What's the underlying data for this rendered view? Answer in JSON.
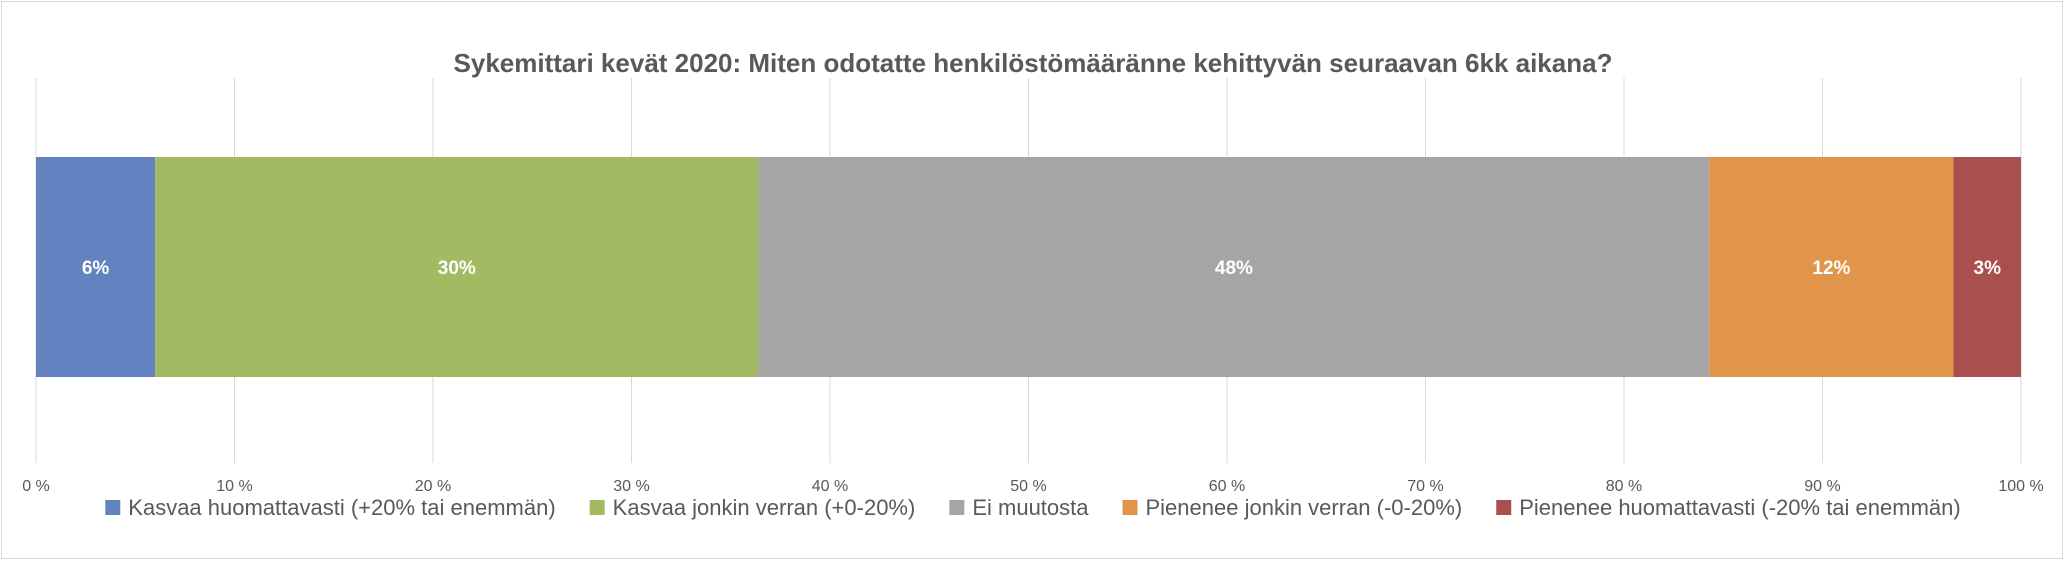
{
  "chart_data": {
    "type": "bar",
    "orientation": "horizontal",
    "stacked": "percent",
    "title": "Sykemittari kevät 2020:  Miten odotatte henkilöstömääränne kehittyvän seuraavan 6kk aikana?",
    "xlabel": "",
    "ylabel": "",
    "xlim": [
      0,
      100
    ],
    "grid": true,
    "legend_position": "bottom",
    "x_ticks": [
      "0 %",
      "10 %",
      "20 %",
      "30 %",
      "40 %",
      "50 %",
      "60 %",
      "70 %",
      "80 %",
      "90 %",
      "100 %"
    ],
    "series": [
      {
        "name": "Kasvaa huomattavasti (+20% tai enemmän)",
        "value": 6,
        "label": "6%",
        "color": "#6382c0"
      },
      {
        "name": "Kasvaa jonkin verran (+0-20%)",
        "value": 30.4,
        "label": "30%",
        "color": "#a2bb63"
      },
      {
        "name": "Ei muutosta",
        "value": 47.9,
        "label": "48%",
        "color": "#a5a5a5"
      },
      {
        "name": "Pienenee jonkin verran (-0-20%)",
        "value": 12.3,
        "label": "12%",
        "color": "#e0954b"
      },
      {
        "name": "Pienenee huomattavasti (-20% tai enemmän)",
        "value": 3.4,
        "label": "3%",
        "color": "#a9504f"
      }
    ]
  }
}
